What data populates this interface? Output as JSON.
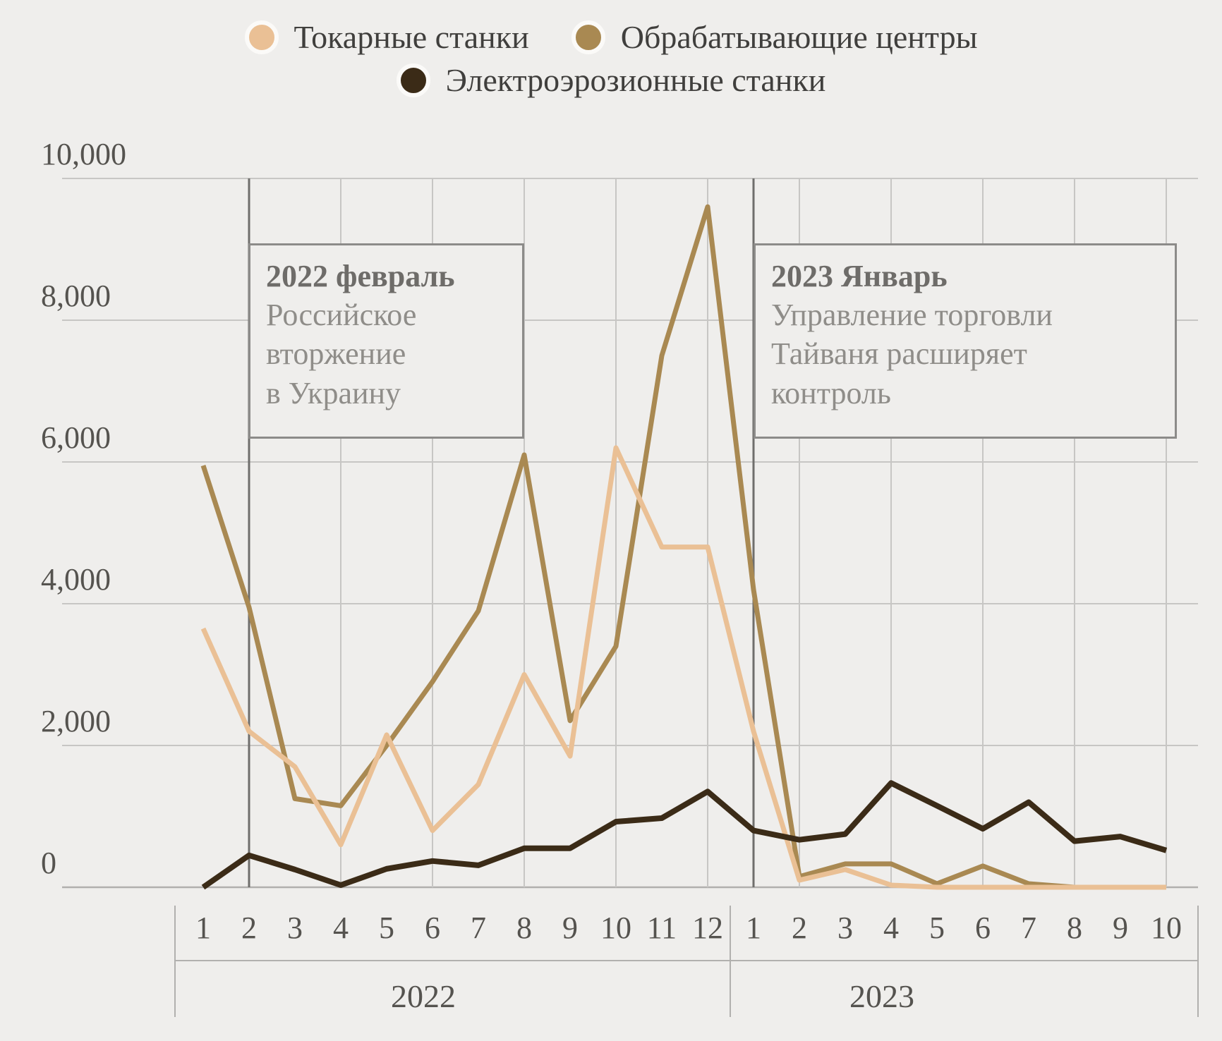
{
  "colors": {
    "background": "#efeeec",
    "grid": "#c7c6c4",
    "axis": "#b1b0ae",
    "annotation_line": "#6f6e6c",
    "annotation_border": "#8c8b89",
    "series_tokarnye": "#eac095",
    "series_obrabatyvayushchie": "#a98952",
    "series_elektroerozionnye": "#3b2b17"
  },
  "legend": {
    "rows": [
      [
        {
          "key": "series_tokarnye",
          "label": "Токарные станки"
        },
        {
          "key": "series_obrabatyvayushchie",
          "label": "Обрабатывающие центры"
        }
      ],
      [
        {
          "key": "series_elektroerozionnye",
          "label": "Электроэрозионные станки"
        }
      ]
    ]
  },
  "annotations": [
    {
      "id": "annot-2022",
      "title": "2022 февраль",
      "body": "Российское\nвторжение\nв Украину",
      "month_index": 1
    },
    {
      "id": "annot-2023",
      "title": "2023 Январь",
      "body": "Управление торговли\nТайваня расширяет\nконтроль",
      "month_index": 12
    }
  ],
  "chart_data": {
    "type": "line",
    "title": "",
    "xlabel": "",
    "ylabel": "",
    "ylim": [
      0,
      10000
    ],
    "y_ticks": [
      0,
      2000,
      4000,
      6000,
      8000,
      10000
    ],
    "y_tick_labels": [
      "0",
      "2,000",
      "4,000",
      "6,000",
      "8,000",
      "10,000"
    ],
    "x_labels": [
      "1",
      "2",
      "3",
      "4",
      "5",
      "6",
      "7",
      "8",
      "9",
      "10",
      "11",
      "12",
      "1",
      "2",
      "3",
      "4",
      "5",
      "6",
      "7",
      "8",
      "9",
      "10"
    ],
    "x_years": [
      {
        "label": "2022",
        "months": 12
      },
      {
        "label": "2023",
        "months": 10
      }
    ],
    "grid_on_even_months": true,
    "legend_position": "top",
    "series": [
      {
        "name": "Обрабатывающие центры",
        "key": "series_obrabatyvayushchie",
        "slug": "obrabatyvayushchie-tsentry",
        "values": [
          5950,
          3950,
          1250,
          1150,
          2000,
          2900,
          3900,
          6100,
          2350,
          3400,
          7500,
          9600,
          4200,
          150,
          330,
          330,
          50,
          300,
          50,
          0,
          0,
          0
        ]
      },
      {
        "name": "Токарные станки",
        "key": "series_tokarnye",
        "slug": "tokarnye-stanki",
        "values": [
          3650,
          2200,
          1700,
          600,
          2150,
          800,
          1450,
          3000,
          1850,
          6200,
          4800,
          4800,
          2200,
          100,
          250,
          30,
          0,
          0,
          0,
          0,
          0,
          0
        ]
      },
      {
        "name": "Электроэрозионные станки",
        "key": "series_elektroerozionnye",
        "slug": "elektroerozionnye-stanki",
        "values": [
          0,
          450,
          250,
          30,
          260,
          370,
          310,
          550,
          550,
          925,
          975,
          1350,
          800,
          670,
          750,
          1470,
          1150,
          825,
          1200,
          650,
          715,
          520
        ]
      }
    ]
  }
}
